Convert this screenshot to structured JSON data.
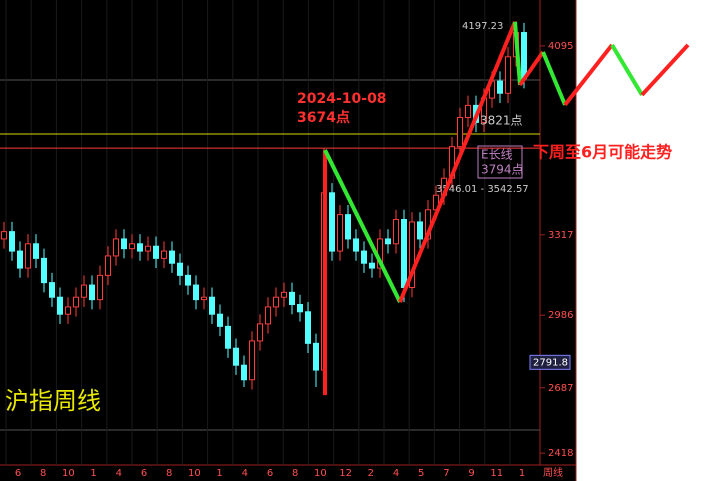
{
  "chart_data": {
    "type": "candlestick",
    "title": "沪指周线",
    "forecast_title": "下周至6月可能走势",
    "ylim": [
      2369,
      4284
    ],
    "yticks": [
      2418,
      2687,
      2986,
      3317,
      4095
    ],
    "categories": [
      "6",
      "8",
      "10",
      "1",
      "4",
      "6",
      "8",
      "10",
      "1",
      "4",
      "6",
      "8",
      "10",
      "12",
      "2",
      "4",
      "5",
      "7",
      "9",
      "11",
      "1"
    ],
    "period_label": "周线",
    "up_color": "#ff3b3b",
    "down_color": "#54ffff",
    "open": [
      3300,
      3330,
      3250,
      3180,
      3280,
      3220,
      3120,
      3060,
      2990,
      3020,
      3060,
      3110,
      3050,
      3150,
      3230,
      3300,
      3260,
      3280,
      3250,
      3270,
      3220,
      3250,
      3200,
      3150,
      3110,
      3050,
      3060,
      2990,
      2940,
      2850,
      2780,
      2720,
      2880,
      2950,
      3020,
      3060,
      3080,
      3030,
      3000,
      2870,
      2760,
      3490,
      3250,
      3400,
      3300,
      3250,
      3200,
      3180,
      3300,
      3280,
      3380,
      3100,
      3370,
      3300,
      3420,
      3480,
      3550,
      3680,
      3800,
      3850,
      3780,
      3880,
      3950,
      3900,
      4050,
      4150
    ],
    "high": [
      3370,
      3370,
      3290,
      3320,
      3320,
      3260,
      3160,
      3100,
      3060,
      3100,
      3150,
      3150,
      3190,
      3270,
      3340,
      3340,
      3320,
      3320,
      3310,
      3310,
      3290,
      3290,
      3240,
      3190,
      3150,
      3100,
      3100,
      3030,
      2980,
      2890,
      2820,
      2920,
      2990,
      3060,
      3100,
      3120,
      3120,
      3070,
      3040,
      2910,
      3674,
      3530,
      3440,
      3440,
      3340,
      3290,
      3240,
      3340,
      3340,
      3420,
      3420,
      3410,
      3410,
      3460,
      3520,
      3590,
      3720,
      3840,
      3890,
      3890,
      3920,
      3990,
      3990,
      4090,
      4197.23,
      4190
    ],
    "low": [
      3260,
      3210,
      3140,
      3140,
      3180,
      3080,
      3020,
      2950,
      2950,
      2980,
      3020,
      3010,
      3010,
      3110,
      3190,
      3220,
      3220,
      3210,
      3210,
      3180,
      3180,
      3160,
      3110,
      3070,
      3010,
      3010,
      2950,
      2900,
      2810,
      2740,
      2690,
      2680,
      2840,
      2910,
      2980,
      3020,
      2990,
      2960,
      2830,
      2690,
      2720,
      3210,
      3210,
      3260,
      3210,
      3160,
      3140,
      3140,
      3240,
      3240,
      3040,
      3060,
      3260,
      3260,
      3380,
      3440,
      3510,
      3640,
      3760,
      3740,
      3740,
      3840,
      3860,
      3860,
      4010,
      3920
    ],
    "close": [
      3330,
      3250,
      3180,
      3280,
      3220,
      3120,
      3060,
      2990,
      3020,
      3060,
      3110,
      3050,
      3150,
      3230,
      3300,
      3260,
      3280,
      3250,
      3270,
      3220,
      3250,
      3200,
      3150,
      3110,
      3050,
      3060,
      2990,
      2940,
      2850,
      2780,
      2720,
      2880,
      2950,
      3020,
      3060,
      3080,
      3030,
      3000,
      2870,
      2760,
      3490,
      3250,
      3400,
      3300,
      3250,
      3200,
      3180,
      3300,
      3280,
      3380,
      3100,
      3370,
      3300,
      3420,
      3480,
      3550,
      3680,
      3800,
      3850,
      3780,
      3880,
      3950,
      3900,
      4050,
      4150,
      3960
    ],
    "hlines": [
      {
        "value": 3732,
        "color": "#d8d800"
      },
      {
        "value": 3674,
        "color": "#ff3b3b"
      }
    ],
    "path_history": [
      2657,
      3666,
      3040,
      4194,
      3934
    ],
    "path_forecast": [
      3934,
      4070,
      3852,
      4099,
      3893,
      4099
    ],
    "rise_color": "#ff2020",
    "fall_color": "#33e833",
    "annotations": {
      "date": "2024-10-08",
      "peak": "3674点",
      "level1": "3821点",
      "line_name": "E长线",
      "level2": "3794点",
      "range": "3546.01 - 3542.57",
      "high": "4197.23"
    },
    "last_price": 2791.8
  }
}
